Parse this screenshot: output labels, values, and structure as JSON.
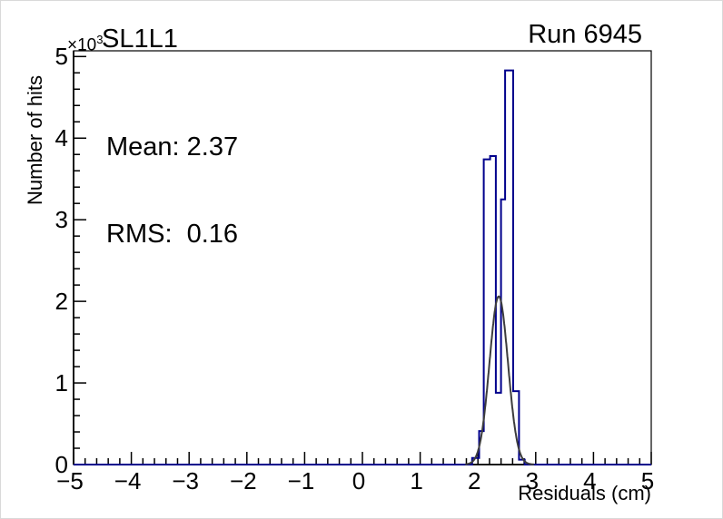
{
  "canvas": {
    "title": "SL1L1",
    "run_label": "Run 6945",
    "background": "#ffffff"
  },
  "stats_box": {
    "mean_line": "Mean: 2.37",
    "rms_line": "RMS:  0.16"
  },
  "axes": {
    "y_title": "Number of hits",
    "x_title": "Residuals (cm)",
    "y_multiplier_base": "×10",
    "y_multiplier_exp": "3"
  },
  "chart_data": {
    "type": "bar",
    "subtype": "root-histogram-step-with-gaussian-fit",
    "title": "SL1L1",
    "annotation": "Run 6945",
    "xlabel": "Residuals (cm)",
    "ylabel": "Number of hits",
    "y_unit_multiplier": 1000,
    "xlim": [
      -5,
      5
    ],
    "ylim": [
      0,
      5.07
    ],
    "grid": false,
    "legend": false,
    "minor_divisions": 5,
    "x_major_ticks": [
      -5,
      -4,
      -3,
      -2,
      -1,
      0,
      1,
      2,
      3,
      4,
      5
    ],
    "x_tick_labels": [
      "−5",
      "−4",
      "−3",
      "−2",
      "−1",
      "0",
      "1",
      "2",
      "3",
      "4",
      "5"
    ],
    "y_major_ticks": [
      0,
      1,
      2,
      3,
      4,
      5
    ],
    "y_tick_labels": [
      "0",
      "1",
      "2",
      "3",
      "4",
      "5"
    ],
    "histogram": {
      "color": "#00008c",
      "line_width": 2,
      "values_unit": "×10³ hits",
      "bins": [
        [
          1.9,
          2.02,
          0.08
        ],
        [
          2.02,
          2.1,
          0.41
        ],
        [
          2.1,
          2.21,
          3.74
        ],
        [
          2.21,
          2.31,
          3.78
        ],
        [
          2.31,
          2.4,
          0.88
        ],
        [
          2.4,
          2.47,
          3.25
        ],
        [
          2.47,
          2.61,
          4.83
        ],
        [
          2.61,
          2.71,
          0.9
        ],
        [
          2.71,
          2.81,
          0.06
        ]
      ]
    },
    "fit": {
      "model": "gaussian",
      "color": "#3d3d3d",
      "line_width": 2,
      "amplitude": 2.06,
      "mean": 2.36,
      "sigma": 0.16,
      "range": [
        1.78,
        2.97
      ]
    },
    "stats": {
      "mean": 2.37,
      "rms": 0.16
    }
  }
}
